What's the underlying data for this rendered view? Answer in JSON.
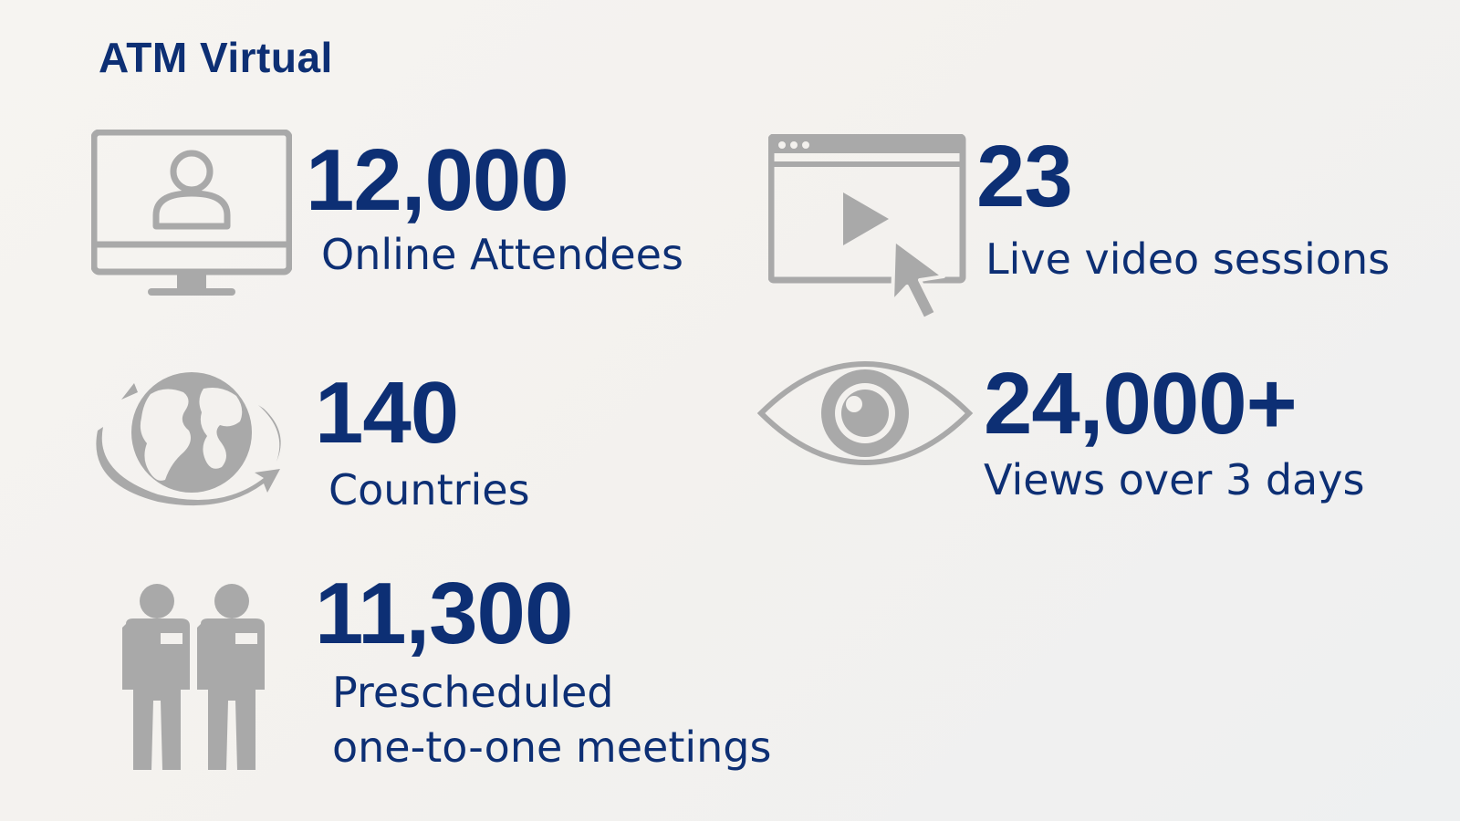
{
  "title": "ATM Virtual",
  "icon_color": "#a9a9a9",
  "text_color": "#0d2f74",
  "stats": {
    "attendees": {
      "value": "12,000",
      "label": "Online Attendees",
      "icon": "monitor-user-icon"
    },
    "sessions": {
      "value": "23",
      "label": "Live video sessions",
      "icon": "video-player-cursor-icon"
    },
    "countries": {
      "value": "140",
      "label": "Countries",
      "icon": "globe-icon"
    },
    "views": {
      "value": "24,000+",
      "label": "Views over 3 days",
      "icon": "eye-icon"
    },
    "meetings": {
      "value": "11,300",
      "label_line1": "Prescheduled",
      "label_line2": "one-to-one meetings",
      "icon": "people-icon"
    }
  }
}
